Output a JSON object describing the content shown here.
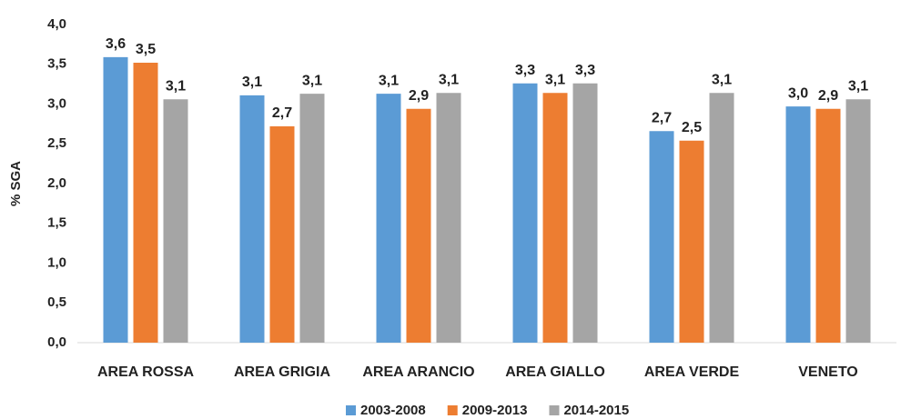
{
  "chart_data": {
    "type": "bar",
    "y_label": "% SGA",
    "categories": [
      "AREA ROSSA",
      "AREA GRIGIA",
      "AREA ARANCIO",
      "AREA GIALLO",
      "AREA VERDE",
      "VENETO"
    ],
    "series": [
      {
        "name": "2003-2008",
        "color": "#5b9bd5",
        "values": [
          3.59,
          3.11,
          3.13,
          3.26,
          2.66,
          2.97
        ],
        "value_labels": [
          "3,6",
          "3,1",
          "3,1",
          "3,3",
          "2,7",
          "3,0"
        ]
      },
      {
        "name": "2009-2013",
        "color": "#ed7d31",
        "values": [
          3.52,
          2.72,
          2.94,
          3.14,
          2.54,
          2.94
        ],
        "value_labels": [
          "3,5",
          "2,7",
          "2,9",
          "3,1",
          "2,5",
          "2,9"
        ]
      },
      {
        "name": "2014-2015",
        "color": "#a5a5a5",
        "values": [
          3.06,
          3.13,
          3.14,
          3.26,
          3.14,
          3.06
        ],
        "value_labels": [
          "3,1",
          "3,1",
          "3,1",
          "3,3",
          "3,1",
          "3,1"
        ]
      }
    ],
    "ylim": [
      0,
      4
    ],
    "yticks": [
      {
        "value": 0,
        "label": "0,0"
      },
      {
        "value": 0.5,
        "label": "0,5"
      },
      {
        "value": 1,
        "label": "1,0"
      },
      {
        "value": 1.5,
        "label": "1,5"
      },
      {
        "value": 2,
        "label": "2,0"
      },
      {
        "value": 2.5,
        "label": "2,5"
      },
      {
        "value": 3,
        "label": "3,0"
      },
      {
        "value": 3.5,
        "label": "3,5"
      },
      {
        "value": 4,
        "label": "4,0"
      }
    ],
    "legend": "bottom"
  }
}
